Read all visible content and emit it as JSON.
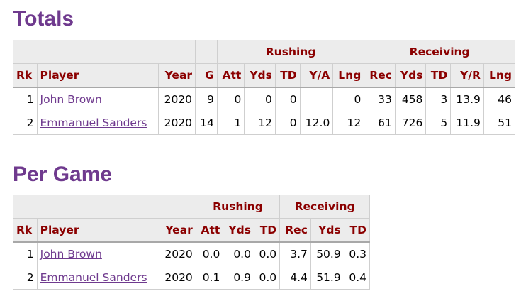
{
  "totals": {
    "title": "Totals",
    "groups": {
      "rushing": "Rushing",
      "receiving": "Receiving"
    },
    "columns": [
      "Rk",
      "Player",
      "Year",
      "G",
      "Att",
      "Yds",
      "TD",
      "Y/A",
      "Lng",
      "Rec",
      "Yds",
      "TD",
      "Y/R",
      "Lng"
    ],
    "rows": [
      [
        "1",
        "John Brown",
        "2020",
        "9",
        "0",
        "0",
        "0",
        "",
        "0",
        "33",
        "458",
        "3",
        "13.9",
        "46"
      ],
      [
        "2",
        "Emmanuel Sanders",
        "2020",
        "14",
        "1",
        "12",
        "0",
        "12.0",
        "12",
        "61",
        "726",
        "5",
        "11.9",
        "51"
      ]
    ]
  },
  "per_game": {
    "title": "Per Game",
    "groups": {
      "rushing": "Rushing",
      "receiving": "Receiving"
    },
    "columns": [
      "Rk",
      "Player",
      "Year",
      "Att",
      "Yds",
      "TD",
      "Rec",
      "Yds",
      "TD"
    ],
    "rows": [
      [
        "1",
        "John Brown",
        "2020",
        "0.0",
        "0.0",
        "0.0",
        "3.7",
        "50.9",
        "0.3"
      ],
      [
        "2",
        "Emmanuel Sanders",
        "2020",
        "0.1",
        "0.9",
        "0.0",
        "4.4",
        "51.9",
        "0.4"
      ]
    ]
  },
  "colors": {
    "title": "#6f3a8e",
    "header_text": "#8b0000",
    "header_bg": "#ececec",
    "link": "#6f3a8e"
  }
}
